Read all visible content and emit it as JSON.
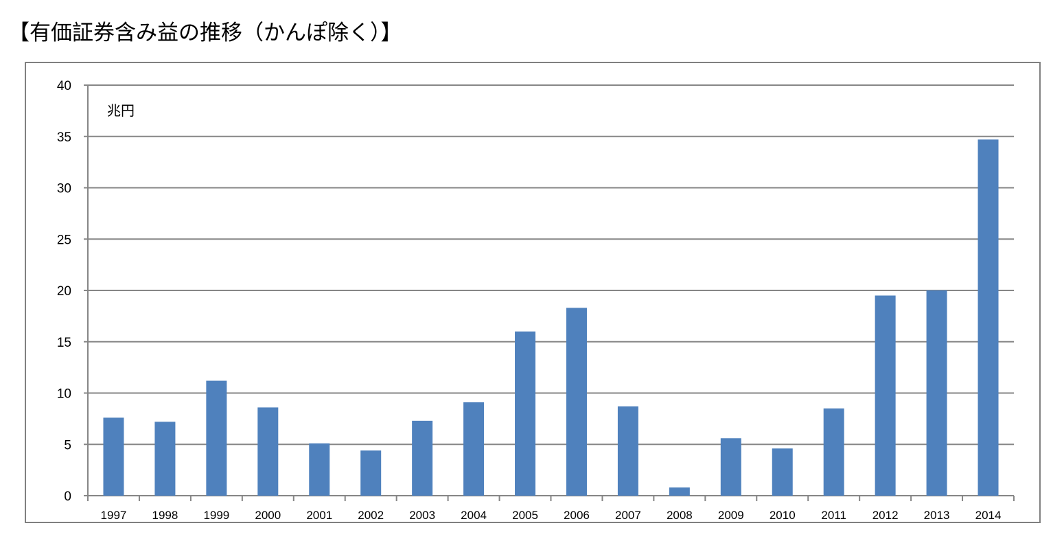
{
  "title": "【有価証券含み益の推移（かんぽ除く）】",
  "colors": {
    "bar": "#4F81BD",
    "grid": "#868686",
    "axis": "#868686"
  },
  "chart_data": {
    "type": "bar",
    "title": "【有価証券含み益の推移（かんぽ除く）】",
    "unit_label": "兆円",
    "xlabel": "",
    "ylabel": "",
    "ylim": [
      0,
      40
    ],
    "y_ticks": [
      0,
      5,
      10,
      15,
      20,
      25,
      30,
      35,
      40
    ],
    "grid": true,
    "categories": [
      "1997",
      "1998",
      "1999",
      "2000",
      "2001",
      "2002",
      "2003",
      "2004",
      "2005",
      "2006",
      "2007",
      "2008",
      "2009",
      "2010",
      "2011",
      "2012",
      "2013",
      "2014"
    ],
    "values": [
      7.6,
      7.2,
      11.2,
      8.6,
      5.1,
      4.4,
      7.3,
      9.1,
      16.0,
      18.3,
      8.7,
      0.8,
      5.6,
      4.6,
      8.5,
      19.5,
      20.0,
      34.7
    ]
  }
}
